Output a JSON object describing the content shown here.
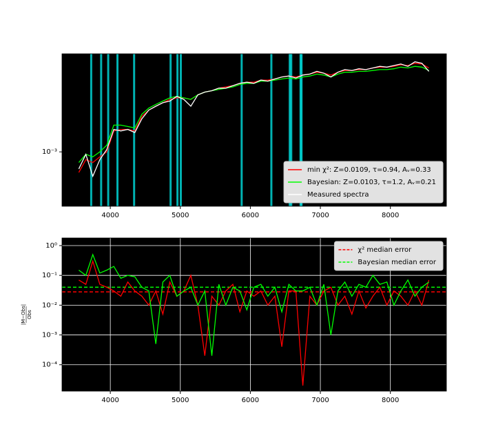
{
  "chart_data": [
    {
      "type": "line",
      "log_y": true,
      "grid": false,
      "background": "#000000",
      "legend": "lower right",
      "xlim": [
        3310,
        8800
      ],
      "ylim": [
        0.00032,
        0.0078
      ],
      "xticks": [
        4000,
        5000,
        6000,
        7000,
        8000
      ],
      "yticks": [
        {
          "value": 0.001,
          "label": "10⁻³"
        }
      ],
      "vlines": [
        3727,
        3869,
        3970,
        4102,
        4340,
        4861,
        4959,
        5007,
        5876,
        6300,
        6563,
        6584,
        6717,
        6731
      ],
      "vline_color": "#00dede",
      "x": [
        3550,
        3650,
        3750,
        3850,
        3950,
        4050,
        4150,
        4250,
        4350,
        4450,
        4550,
        4650,
        4750,
        4850,
        4950,
        5050,
        5150,
        5250,
        5350,
        5450,
        5550,
        5650,
        5750,
        5850,
        5950,
        6050,
        6150,
        6250,
        6350,
        6450,
        6550,
        6650,
        6750,
        6850,
        6950,
        7050,
        7150,
        7250,
        7350,
        7450,
        7550,
        7650,
        7750,
        7850,
        7950,
        8050,
        8150,
        8250,
        8350,
        8450,
        8550
      ],
      "series": [
        {
          "name": "min χ²: Z=0.0109, τ=0.94, Aᵥ=0.33",
          "color": "#ff0000",
          "values": [
            0.00065,
            0.00085,
            0.0008,
            0.0009,
            0.001,
            0.00155,
            0.0016,
            0.0016,
            0.00155,
            0.0021,
            0.0024,
            0.0026,
            0.0028,
            0.003,
            0.0031,
            0.0031,
            0.003,
            0.0033,
            0.0035,
            0.0036,
            0.0038,
            0.0039,
            0.004,
            0.0042,
            0.0043,
            0.0043,
            0.0045,
            0.0045,
            0.0046,
            0.0048,
            0.0049,
            0.0048,
            0.005,
            0.0051,
            0.0053,
            0.0052,
            0.005,
            0.0053,
            0.0055,
            0.0055,
            0.0056,
            0.0056,
            0.0058,
            0.0059,
            0.0059,
            0.006,
            0.0062,
            0.0061,
            0.0064,
            0.0063,
            0.0058
          ]
        },
        {
          "name": "Bayesian: Z=0.0103, τ=1.2, Aᵥ=0.21",
          "color": "#00ff00",
          "values": [
            0.0008,
            0.00095,
            0.0009,
            0.001,
            0.00115,
            0.00175,
            0.00175,
            0.0017,
            0.00165,
            0.0022,
            0.0025,
            0.0027,
            0.0029,
            0.0031,
            0.0032,
            0.0031,
            0.003,
            0.0033,
            0.0035,
            0.0036,
            0.0037,
            0.0038,
            0.0039,
            0.0041,
            0.0042,
            0.0042,
            0.0044,
            0.0044,
            0.0045,
            0.0046,
            0.0047,
            0.0046,
            0.0048,
            0.0049,
            0.0051,
            0.005,
            0.0048,
            0.0051,
            0.0053,
            0.0053,
            0.0054,
            0.0054,
            0.0055,
            0.0056,
            0.0056,
            0.0057,
            0.0059,
            0.0058,
            0.006,
            0.0059,
            0.0055
          ]
        },
        {
          "name": "Measured spectra",
          "color": "#ffffff",
          "values": [
            0.0007,
            0.00095,
            0.0006,
            0.00085,
            0.00105,
            0.0016,
            0.00155,
            0.0016,
            0.0015,
            0.002,
            0.0024,
            0.0026,
            0.0028,
            0.0029,
            0.0032,
            0.003,
            0.0026,
            0.0033,
            0.0035,
            0.0036,
            0.0038,
            0.0038,
            0.004,
            0.0042,
            0.0043,
            0.0042,
            0.0045,
            0.0044,
            0.0046,
            0.0048,
            0.0049,
            0.0047,
            0.005,
            0.0051,
            0.0054,
            0.0052,
            0.0048,
            0.0053,
            0.0056,
            0.0055,
            0.0057,
            0.0056,
            0.0058,
            0.006,
            0.0059,
            0.0061,
            0.0063,
            0.006,
            0.0066,
            0.0064,
            0.0054
          ]
        }
      ]
    },
    {
      "type": "line",
      "log_y": true,
      "grid": true,
      "background": "#000000",
      "legend": "upper right",
      "ylabel_numerator": "|M−Obs|",
      "ylabel_denominator": "Obs",
      "xlim": [
        3310,
        8800
      ],
      "ylim": [
        1.3e-05,
        1.8
      ],
      "xticks": [
        4000,
        5000,
        6000,
        7000,
        8000
      ],
      "yticks": [
        {
          "value": 1,
          "label": "10⁰"
        },
        {
          "value": 0.1,
          "label": "10⁻¹"
        },
        {
          "value": 0.01,
          "label": "10⁻²"
        },
        {
          "value": 0.001,
          "label": "10⁻³"
        },
        {
          "value": 0.0001,
          "label": "10⁻⁴"
        }
      ],
      "hlines": [
        {
          "name": "χ² median error",
          "value": 0.028,
          "color": "#ff0000"
        },
        {
          "name": "Bayesian median error",
          "value": 0.04,
          "color": "#00ff00"
        }
      ],
      "x": [
        3550,
        3650,
        3750,
        3850,
        3950,
        4050,
        4150,
        4250,
        4350,
        4450,
        4550,
        4650,
        4750,
        4850,
        4950,
        5050,
        5150,
        5250,
        5350,
        5450,
        5550,
        5650,
        5750,
        5850,
        5950,
        6050,
        6150,
        6250,
        6350,
        6450,
        6550,
        6650,
        6750,
        6850,
        6950,
        7050,
        7150,
        7250,
        7350,
        7450,
        7550,
        7650,
        7750,
        7850,
        7950,
        8050,
        8150,
        8250,
        8350,
        8450,
        8550
      ],
      "series": [
        {
          "color": "#ff0000",
          "values": [
            0.07,
            0.05,
            0.3,
            0.05,
            0.04,
            0.03,
            0.02,
            0.06,
            0.03,
            0.02,
            0.01,
            0.03,
            0.005,
            0.06,
            0.02,
            0.03,
            0.1,
            0.01,
            0.0002,
            0.02,
            0.01,
            0.03,
            0.05,
            0.006,
            0.03,
            0.02,
            0.03,
            0.01,
            0.02,
            0.0004,
            0.03,
            0.03,
            2e-05,
            0.02,
            0.01,
            0.03,
            0.04,
            0.01,
            0.02,
            0.005,
            0.03,
            0.008,
            0.02,
            0.04,
            0.01,
            0.03,
            0.02,
            0.01,
            0.03,
            0.01,
            0.07
          ]
        },
        {
          "color": "#00ff00",
          "values": [
            0.15,
            0.1,
            0.5,
            0.12,
            0.15,
            0.2,
            0.08,
            0.1,
            0.09,
            0.04,
            0.03,
            0.0005,
            0.06,
            0.1,
            0.02,
            0.03,
            0.04,
            0.01,
            0.03,
            0.0002,
            0.05,
            0.01,
            0.04,
            0.03,
            0.007,
            0.04,
            0.05,
            0.02,
            0.04,
            0.006,
            0.05,
            0.03,
            0.03,
            0.04,
            0.01,
            0.05,
            0.001,
            0.03,
            0.06,
            0.02,
            0.05,
            0.04,
            0.1,
            0.05,
            0.06,
            0.01,
            0.03,
            0.07,
            0.02,
            0.04,
            0.06
          ]
        }
      ]
    }
  ]
}
